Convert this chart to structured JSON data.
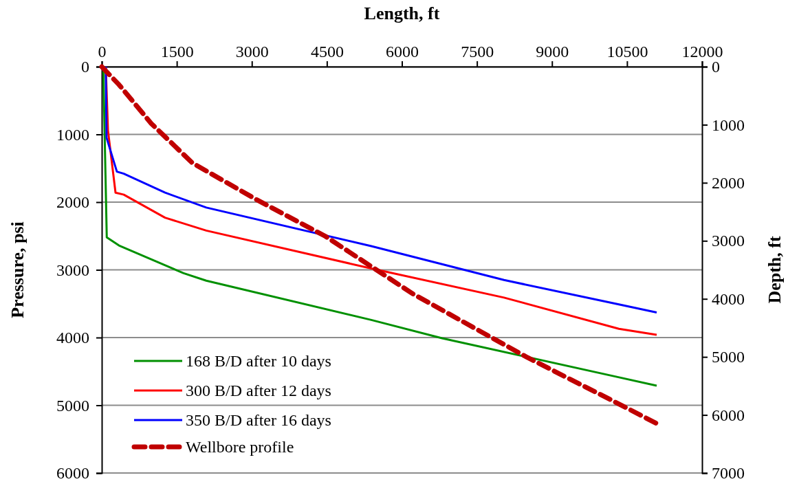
{
  "chart_data": {
    "type": "line",
    "xlabel": "Length, ft",
    "ylabel": "Pressure, psi",
    "y2label": "Depth, ft",
    "xlim": [
      0,
      12000
    ],
    "xticks": [
      0,
      1500,
      3000,
      4500,
      6000,
      7500,
      9000,
      10500,
      12000
    ],
    "ylim": [
      6000,
      0
    ],
    "yticks": [
      0,
      1000,
      2000,
      3000,
      4000,
      5000,
      6000
    ],
    "y2lim": [
      7000,
      0
    ],
    "y2ticks": [
      0,
      1000,
      2000,
      3000,
      4000,
      5000,
      6000,
      7000
    ],
    "grid": "y",
    "legend": "bottom left",
    "marker": "none",
    "series": [
      {
        "name": "168 B/D after 10 days",
        "color": "#009000",
        "line_style": "solid",
        "x": [
          30,
          100,
          344,
          1636,
          2089,
          5388,
          6804,
          10296,
          11093
        ],
        "values": [
          0,
          2520,
          2640,
          3050,
          3160,
          3740,
          4010,
          4580,
          4710
        ]
      },
      {
        "name": "300 B/D after 12 days",
        "color": "#ff0000",
        "line_style": "solid",
        "x": [
          80,
          124,
          275,
          440,
          1265,
          2089,
          5388,
          8041,
          10337,
          11093
        ],
        "values": [
          0,
          940,
          1860,
          1890,
          2230,
          2420,
          2980,
          3410,
          3870,
          3960
        ]
      },
      {
        "name": "350 B/D after 16 days",
        "color": "#0000ff",
        "line_style": "solid",
        "x": [
          80,
          96,
          302,
          440,
          1265,
          2089,
          5388,
          8041,
          10337,
          11093
        ],
        "values": [
          0,
          1050,
          1550,
          1580,
          1860,
          2080,
          2650,
          3150,
          3510,
          3630
        ]
      },
      {
        "name": "Wellbore profile",
        "color": "#c00000",
        "line_style": "dashed",
        "axis": "y2",
        "x": [
          0,
          344,
          990,
          1814,
          3093,
          4467,
          6213,
          8509,
          10337,
          11120
        ],
        "values": [
          0,
          310,
          980,
          1660,
          2290,
          2920,
          3910,
          5010,
          5810,
          6160
        ]
      }
    ]
  }
}
